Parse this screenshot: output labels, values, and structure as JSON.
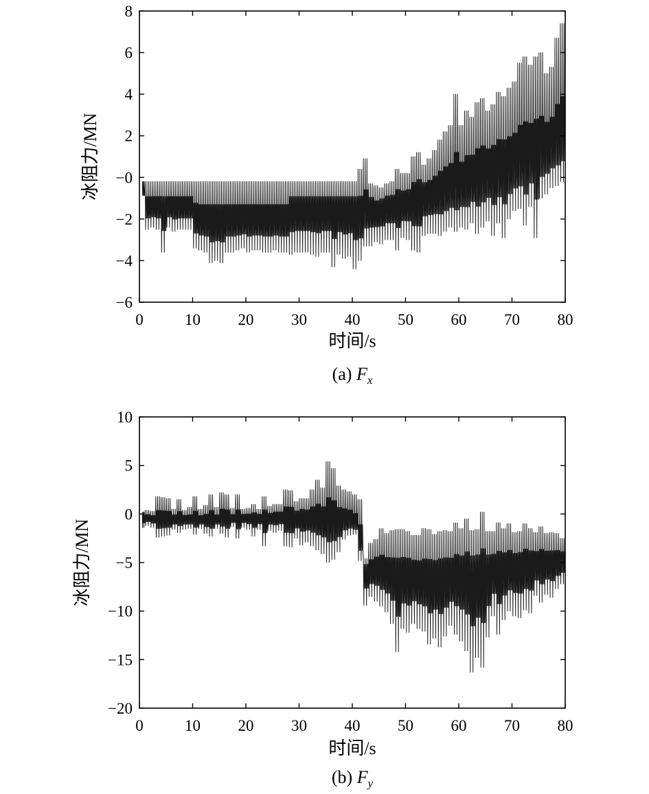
{
  "chart_data": [
    {
      "type": "line",
      "panel": "a",
      "caption_prefix": "(a) ",
      "caption_var": "F",
      "caption_sub": "x",
      "xlabel": "时间/s",
      "ylabel": "冰阻力/MN",
      "xlim": [
        0,
        80
      ],
      "ylim": [
        -6,
        8
      ],
      "xticks": [
        0,
        10,
        20,
        30,
        40,
        50,
        60,
        70,
        80
      ],
      "yticks": [
        8,
        6,
        4,
        2,
        0,
        -2,
        -4,
        -6
      ],
      "ytick_labels": [
        "8",
        "6",
        "4",
        "2",
        "−0",
        "−2",
        "−4",
        "−6"
      ],
      "grid": false,
      "color": "#1a1a1a",
      "x": [
        1,
        2,
        3,
        4,
        5,
        6,
        7,
        8,
        9,
        10,
        11,
        12,
        13,
        14,
        15,
        16,
        17,
        18,
        19,
        20,
        21,
        22,
        23,
        24,
        25,
        26,
        27,
        28,
        29,
        30,
        31,
        32,
        33,
        34,
        35,
        36,
        37,
        38,
        39,
        40,
        41,
        42,
        43,
        44,
        45,
        46,
        47,
        48,
        49,
        50,
        51,
        52,
        53,
        54,
        55,
        56,
        57,
        58,
        59,
        60,
        61,
        62,
        63,
        64,
        65,
        66,
        67,
        68,
        69,
        70,
        71,
        72,
        73,
        74,
        75,
        76,
        77,
        78,
        79,
        80
      ],
      "y_max": [
        -0.2,
        -0.2,
        -0.2,
        -0.2,
        -0.2,
        -0.2,
        -0.2,
        -0.2,
        -0.2,
        -0.2,
        -0.2,
        -0.2,
        -0.2,
        -0.2,
        -0.2,
        -0.2,
        -0.2,
        -0.2,
        -0.2,
        -0.2,
        -0.2,
        -0.2,
        -0.2,
        -0.2,
        -0.2,
        -0.2,
        -0.2,
        -0.2,
        -0.2,
        -0.2,
        -0.2,
        -0.2,
        -0.2,
        -0.2,
        -0.2,
        -0.2,
        -0.2,
        -0.2,
        -0.2,
        -0.2,
        -0.2,
        0.4,
        0.9,
        -0.3,
        -0.4,
        -0.5,
        -0.3,
        -0.2,
        0.4,
        0.2,
        0.2,
        1.0,
        1.2,
        0.6,
        0.9,
        1.3,
        1.8,
        2.2,
        2.5,
        4.0,
        2.5,
        3.2,
        2.9,
        3.6,
        3.8,
        3.2,
        3.5,
        4.1,
        3.9,
        4.3,
        4.6,
        5.5,
        5.8,
        5.4,
        5.8,
        6.0,
        5.0,
        5.3,
        6.7,
        7.4
      ],
      "y_min": [
        -0.6,
        -2.5,
        -2.4,
        -2.5,
        -3.6,
        -2.4,
        -2.6,
        -2.5,
        -2.5,
        -2.5,
        -3.4,
        -3.5,
        -3.6,
        -4.1,
        -4.0,
        -4.1,
        -3.6,
        -3.6,
        -3.5,
        -3.4,
        -3.6,
        -3.5,
        -3.5,
        -3.6,
        -3.6,
        -3.5,
        -3.6,
        -3.6,
        -3.7,
        -3.6,
        -3.6,
        -3.6,
        -3.7,
        -3.8,
        -3.6,
        -3.6,
        -4.3,
        -3.7,
        -3.9,
        -3.8,
        -4.4,
        -4.0,
        -3.3,
        -3.3,
        -3.1,
        -3.2,
        -3.0,
        -3.0,
        -3.5,
        -2.9,
        -3.0,
        -3.5,
        -3.6,
        -2.8,
        -2.7,
        -2.7,
        -2.8,
        -2.6,
        -2.4,
        -2.6,
        -2.4,
        -2.5,
        -2.2,
        -2.7,
        -2.4,
        -2.1,
        -2.8,
        -2.2,
        -2.9,
        -2.0,
        -1.6,
        -1.5,
        -2.3,
        -1.4,
        -2.9,
        -1.0,
        -0.8,
        -0.5,
        -0.4,
        -0.2
      ],
      "y_mean": [
        -1.2,
        -1.3,
        -1.3,
        -1.3,
        -1.3,
        -1.3,
        -1.3,
        -1.3,
        -1.3,
        -1.3,
        -1.8,
        -1.9,
        -1.9,
        -1.9,
        -1.9,
        -1.9,
        -1.9,
        -1.9,
        -1.9,
        -1.9,
        -1.9,
        -1.9,
        -1.9,
        -1.9,
        -1.9,
        -1.9,
        -1.9,
        -1.9,
        -1.3,
        -1.3,
        -1.3,
        -1.3,
        -1.3,
        -1.3,
        -1.3,
        -1.3,
        -1.3,
        -1.3,
        -1.3,
        -1.3,
        -1.3,
        -1.6,
        -1.4,
        -1.3,
        -1.5,
        -1.3,
        -1.2,
        -1.2,
        -1.1,
        -1.1,
        -1.0,
        -0.9,
        -0.8,
        -0.7,
        -0.7,
        -0.6,
        -0.5,
        -0.4,
        -0.3,
        -0.3,
        -0.2,
        -0.1,
        0.1,
        0.2,
        0.3,
        0.4,
        0.5,
        0.6,
        0.7,
        0.7,
        0.8,
        0.9,
        1.0,
        1.1,
        1.2,
        1.3,
        1.4,
        1.6,
        1.8,
        2.0
      ]
    },
    {
      "type": "line",
      "panel": "b",
      "caption_prefix": "(b) ",
      "caption_var": "F",
      "caption_sub": "y",
      "xlabel": "时间/s",
      "ylabel": "冰阻力/MN",
      "xlim": [
        0,
        80
      ],
      "ylim": [
        -20,
        10
      ],
      "xticks": [
        0,
        10,
        20,
        30,
        40,
        50,
        60,
        70,
        80
      ],
      "yticks": [
        10,
        5,
        0,
        -5,
        -10,
        -15,
        -20
      ],
      "ytick_labels": [
        "10",
        "5",
        "0",
        "−5",
        "−10",
        "−15",
        "−20"
      ],
      "grid": false,
      "color": "#1a1a1a",
      "x": [
        1,
        2,
        3,
        4,
        5,
        6,
        7,
        8,
        9,
        10,
        11,
        12,
        13,
        14,
        15,
        16,
        17,
        18,
        19,
        20,
        21,
        22,
        23,
        24,
        25,
        26,
        27,
        28,
        29,
        30,
        31,
        32,
        33,
        34,
        35,
        36,
        37,
        38,
        39,
        40,
        41,
        42,
        43,
        44,
        45,
        46,
        47,
        48,
        49,
        50,
        51,
        52,
        53,
        54,
        55,
        56,
        57,
        58,
        59,
        60,
        61,
        62,
        63,
        64,
        65,
        66,
        67,
        68,
        69,
        70,
        71,
        72,
        73,
        74,
        75,
        76,
        77,
        78,
        79,
        80
      ],
      "y_max": [
        0.2,
        0.4,
        0.3,
        1.8,
        1.7,
        1.6,
        0.5,
        1.5,
        0.4,
        0.7,
        1.8,
        0.5,
        0.9,
        2.0,
        0.7,
        2.2,
        2.0,
        0.6,
        2.0,
        0.5,
        0.6,
        1.0,
        0.5,
        1.8,
        0.8,
        1.0,
        1.0,
        2.5,
        2.4,
        1.3,
        1.6,
        1.6,
        2.5,
        3.5,
        2.7,
        5.4,
        4.7,
        2.9,
        2.5,
        2.3,
        2.0,
        1.5,
        -4.6,
        -3.0,
        -2.6,
        -1.5,
        -2.0,
        -1.7,
        -1.6,
        -1.6,
        -1.8,
        -2.2,
        -2.2,
        -1.5,
        -1.6,
        -2.1,
        -1.8,
        -1.7,
        -1.8,
        -0.9,
        -1.5,
        -0.5,
        -1.7,
        -1.6,
        0.2,
        -1.8,
        -1.8,
        -0.9,
        -1.5,
        -1.0,
        -1.9,
        -1.8,
        -1.0,
        -1.5,
        -1.9,
        -1.3,
        -2.0,
        -1.9,
        -2.0,
        -2.5
      ],
      "y_min": [
        -1.4,
        -1.2,
        -1.4,
        -2.4,
        -2.3,
        -2.2,
        -1.6,
        -1.9,
        -1.6,
        -1.5,
        -2.1,
        -1.5,
        -2.0,
        -2.3,
        -1.5,
        -2.0,
        -2.4,
        -1.3,
        -2.5,
        -1.4,
        -1.6,
        -2.3,
        -1.6,
        -3.3,
        -1.7,
        -1.9,
        -1.7,
        -3.3,
        -3.4,
        -2.5,
        -3.2,
        -2.9,
        -3.3,
        -3.7,
        -4.1,
        -5.0,
        -4.7,
        -3.9,
        -2.6,
        -2.2,
        -2.1,
        -4.8,
        -9.4,
        -8.5,
        -9.0,
        -9.5,
        -10.1,
        -11.3,
        -14.2,
        -11.8,
        -12.2,
        -11.3,
        -11.8,
        -12.1,
        -13.4,
        -12.8,
        -13.7,
        -12.6,
        -11.5,
        -12.4,
        -13.1,
        -14.1,
        -16.3,
        -14.8,
        -15.8,
        -12.7,
        -10.5,
        -12.4,
        -10.9,
        -10.0,
        -10.5,
        -10.7,
        -9.9,
        -10.2,
        -8.4,
        -9.1,
        -8.3,
        -8.6,
        -7.7,
        -7.2
      ],
      "y_mean": [
        -0.3,
        -0.3,
        -0.4,
        -0.4,
        -0.4,
        -0.4,
        -0.4,
        -0.4,
        -0.4,
        -0.5,
        -0.5,
        -0.5,
        -0.5,
        -0.5,
        -0.5,
        -0.4,
        -0.4,
        -0.4,
        -0.4,
        -0.3,
        -0.3,
        -0.3,
        -0.3,
        -0.3,
        -0.3,
        -0.2,
        -0.2,
        -0.2,
        -0.2,
        -0.2,
        -0.1,
        -0.2,
        -0.2,
        -0.3,
        -0.3,
        -0.3,
        -0.4,
        -0.5,
        -0.5,
        -0.6,
        -1.0,
        -2.5,
        -5.5,
        -5.6,
        -5.4,
        -5.7,
        -5.8,
        -6.0,
        -6.1,
        -6.0,
        -6.0,
        -6.1,
        -6.2,
        -6.3,
        -6.3,
        -6.2,
        -6.1,
        -6.0,
        -6.0,
        -5.9,
        -5.8,
        -5.7,
        -5.7,
        -5.6,
        -5.6,
        -5.5,
        -5.4,
        -5.4,
        -5.3,
        -5.2,
        -5.2,
        -5.1,
        -5.0,
        -5.0,
        -4.9,
        -4.9,
        -4.8,
        -4.8,
        -4.7,
        -4.6
      ]
    }
  ]
}
